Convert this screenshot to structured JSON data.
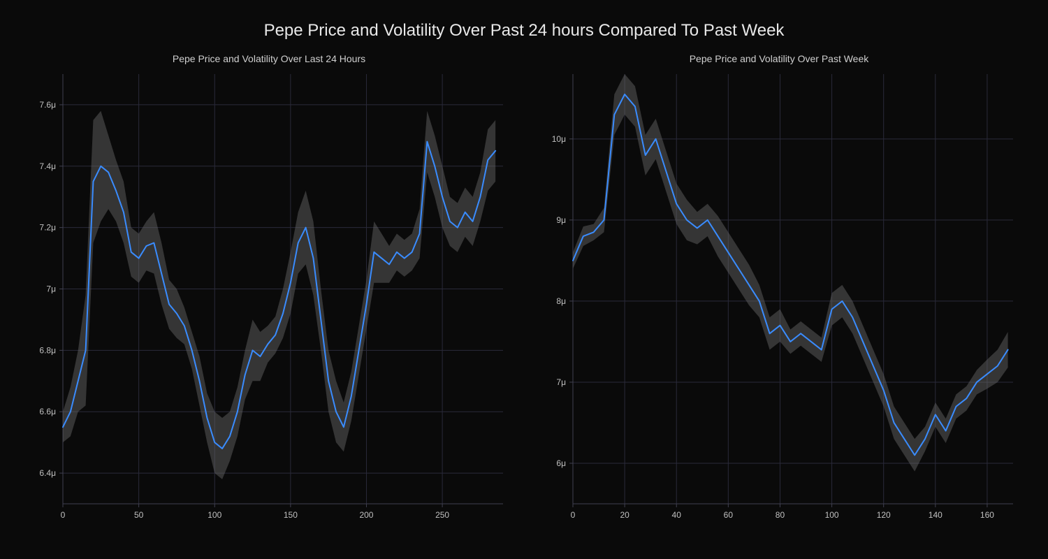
{
  "main_title": "Pepe Price and Volatility Over Past 24 hours Compared To Past Week",
  "title_fontsize": 24,
  "title_color": "#e8e8e8",
  "background_color": "#0a0a0a",
  "grid_color": "#2a2a3a",
  "axis_color": "#404050",
  "tick_color": "#c0c0c0",
  "tick_fontsize": 12,
  "line_color": "#3a8cff",
  "band_color": "#6a6a6a",
  "band_opacity": 0.45,
  "line_width": 2,
  "subtitle_fontsize": 14,
  "subtitle_color": "#d0d0d0",
  "chart_left": {
    "subtitle": "Pepe Price and Volatility Over Last 24 Hours",
    "type": "line_with_band",
    "xlim": [
      0,
      290
    ],
    "ylim": [
      6.3,
      7.7
    ],
    "xticks": [
      0,
      50,
      100,
      150,
      200,
      250
    ],
    "yticks": [
      6.4,
      6.6,
      6.8,
      7.0,
      7.2,
      7.4,
      7.6
    ],
    "ytick_labels": [
      "6.4μ",
      "6.6μ",
      "6.8μ",
      "7μ",
      "7.2μ",
      "7.4μ",
      "7.6μ"
    ],
    "x": [
      0,
      5,
      10,
      15,
      20,
      25,
      30,
      35,
      40,
      45,
      50,
      55,
      60,
      65,
      70,
      75,
      80,
      85,
      90,
      95,
      100,
      105,
      110,
      115,
      120,
      125,
      130,
      135,
      140,
      145,
      150,
      155,
      160,
      165,
      170,
      175,
      180,
      185,
      190,
      195,
      200,
      205,
      210,
      215,
      220,
      225,
      230,
      235,
      240,
      245,
      250,
      255,
      260,
      265,
      270,
      275,
      280,
      285
    ],
    "price": [
      6.55,
      6.6,
      6.7,
      6.8,
      7.35,
      7.4,
      7.38,
      7.32,
      7.25,
      7.12,
      7.1,
      7.14,
      7.15,
      7.05,
      6.95,
      6.92,
      6.88,
      6.8,
      6.7,
      6.58,
      6.5,
      6.48,
      6.52,
      6.6,
      6.72,
      6.8,
      6.78,
      6.82,
      6.85,
      6.92,
      7.02,
      7.15,
      7.2,
      7.1,
      6.9,
      6.7,
      6.6,
      6.55,
      6.65,
      6.8,
      6.95,
      7.12,
      7.1,
      7.08,
      7.12,
      7.1,
      7.12,
      7.18,
      7.48,
      7.4,
      7.3,
      7.22,
      7.2,
      7.25,
      7.22,
      7.3,
      7.42,
      7.45
    ],
    "band_half": [
      0.05,
      0.08,
      0.1,
      0.18,
      0.2,
      0.18,
      0.12,
      0.1,
      0.1,
      0.08,
      0.08,
      0.08,
      0.1,
      0.1,
      0.08,
      0.08,
      0.06,
      0.06,
      0.08,
      0.08,
      0.1,
      0.1,
      0.08,
      0.08,
      0.08,
      0.1,
      0.08,
      0.06,
      0.06,
      0.08,
      0.1,
      0.1,
      0.12,
      0.12,
      0.1,
      0.1,
      0.1,
      0.08,
      0.08,
      0.08,
      0.08,
      0.1,
      0.08,
      0.06,
      0.06,
      0.06,
      0.06,
      0.08,
      0.1,
      0.1,
      0.1,
      0.08,
      0.08,
      0.08,
      0.08,
      0.08,
      0.1,
      0.1
    ]
  },
  "chart_right": {
    "subtitle": "Pepe Price and Volatility Over Past Week",
    "type": "line_with_band",
    "xlim": [
      0,
      170
    ],
    "ylim": [
      5.5,
      10.8
    ],
    "xticks": [
      0,
      20,
      40,
      60,
      80,
      100,
      120,
      140,
      160
    ],
    "yticks": [
      6,
      7,
      8,
      9,
      10
    ],
    "ytick_labels": [
      "6μ",
      "7μ",
      "8μ",
      "9μ",
      "10μ"
    ],
    "x": [
      0,
      4,
      8,
      12,
      16,
      20,
      24,
      28,
      32,
      36,
      40,
      44,
      48,
      52,
      56,
      60,
      64,
      68,
      72,
      76,
      80,
      84,
      88,
      92,
      96,
      100,
      104,
      108,
      112,
      116,
      120,
      124,
      128,
      132,
      136,
      140,
      144,
      148,
      152,
      156,
      160,
      164,
      168
    ],
    "price": [
      8.5,
      8.8,
      8.85,
      9.0,
      10.3,
      10.55,
      10.4,
      9.8,
      10.0,
      9.6,
      9.2,
      9.0,
      8.9,
      9.0,
      8.8,
      8.6,
      8.4,
      8.2,
      8.0,
      7.6,
      7.7,
      7.5,
      7.6,
      7.5,
      7.4,
      7.9,
      8.0,
      7.8,
      7.5,
      7.2,
      6.9,
      6.5,
      6.3,
      6.1,
      6.3,
      6.6,
      6.4,
      6.7,
      6.8,
      7.0,
      7.1,
      7.2,
      7.4
    ],
    "band_half": [
      0.1,
      0.12,
      0.1,
      0.15,
      0.25,
      0.25,
      0.25,
      0.25,
      0.25,
      0.25,
      0.25,
      0.25,
      0.2,
      0.2,
      0.25,
      0.25,
      0.25,
      0.25,
      0.2,
      0.2,
      0.2,
      0.15,
      0.15,
      0.15,
      0.15,
      0.2,
      0.2,
      0.2,
      0.2,
      0.2,
      0.2,
      0.2,
      0.2,
      0.2,
      0.15,
      0.15,
      0.15,
      0.15,
      0.15,
      0.15,
      0.18,
      0.2,
      0.22
    ]
  }
}
